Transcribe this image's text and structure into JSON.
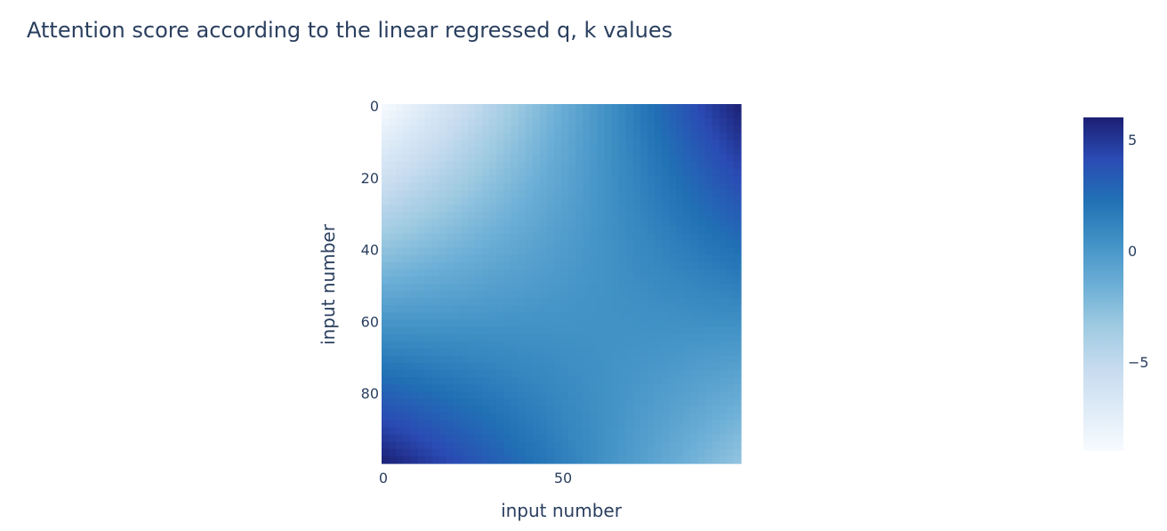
{
  "chart_data": {
    "type": "heatmap",
    "title": "Attention score according to the linear regressed q, k  values",
    "xlabel": "input number",
    "ylabel": "input number",
    "x_range": [
      0,
      99
    ],
    "y_range": [
      0,
      99
    ],
    "y_reversed": true,
    "x_ticks": [
      0,
      50
    ],
    "y_ticks": [
      0,
      20,
      40,
      60,
      80
    ],
    "colorbar": {
      "range": [
        -9,
        6
      ],
      "ticks": [
        5,
        0,
        -5
      ],
      "tick_labels": [
        "5",
        "0",
        "−5"
      ]
    },
    "corner_values": {
      "top_left": -9,
      "top_right": 6,
      "bottom_left": 6,
      "bottom_right": -3
    },
    "colorscale": [
      [
        0.0,
        "#f7fbff"
      ],
      [
        0.125,
        "#deebf7"
      ],
      [
        0.25,
        "#c6dbef"
      ],
      [
        0.375,
        "#9ecae1"
      ],
      [
        0.5,
        "#6baed6"
      ],
      [
        0.625,
        "#4292c6"
      ],
      [
        0.75,
        "#2171b5"
      ],
      [
        0.875,
        "#2a4bb4"
      ],
      [
        1.0,
        "#1c1f73"
      ]
    ]
  }
}
